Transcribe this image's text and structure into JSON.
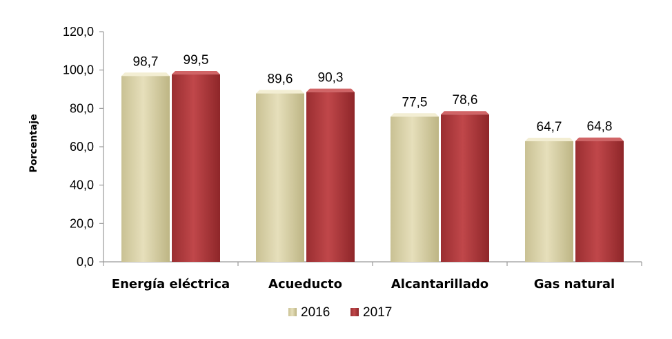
{
  "chart_data": {
    "type": "bar",
    "categories": [
      "Energía eléctrica",
      "Acueducto",
      "Alcantarillado",
      "Gas natural"
    ],
    "series": [
      {
        "name": "2016",
        "values": [
          98.7,
          89.6,
          77.5,
          64.7
        ],
        "labels": [
          "98,7",
          "89,6",
          "77,5",
          "64,7"
        ],
        "color": "#d9d2aa"
      },
      {
        "name": "2017",
        "values": [
          99.5,
          90.3,
          78.6,
          64.8
        ],
        "labels": [
          "99,5",
          "90,3",
          "78,6",
          "64,8"
        ],
        "color": "#b13a3c"
      }
    ],
    "yticks": [
      0,
      20,
      40,
      60,
      80,
      100,
      120
    ],
    "ytick_labels": [
      "0,0",
      "20,0",
      "40,0",
      "60,0",
      "80,0",
      "100,0",
      "120,0"
    ],
    "ylim": [
      0,
      120
    ],
    "ylabel": "Porcentaje",
    "xlabel": "",
    "title": "",
    "grid": false,
    "legend": "bottom"
  }
}
